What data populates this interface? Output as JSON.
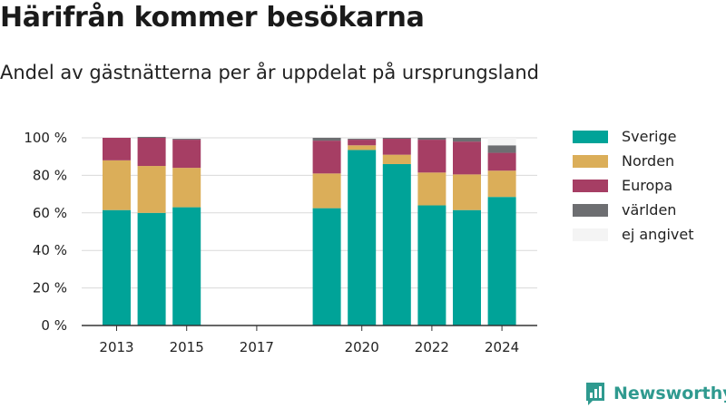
{
  "chart_data": {
    "type": "bar",
    "stacked": true,
    "title": "Härifrån kommer besökarna",
    "subtitle": "Andel av gästnätterna per år uppdelat på ursprungsland",
    "xlabel": "",
    "ylabel": "",
    "ylim": [
      0,
      100
    ],
    "yticks": [
      "0 %",
      "20 %",
      "40 %",
      "60 %",
      "80 %",
      "100 %"
    ],
    "xticks": [
      "2013",
      "2015",
      "2017",
      "2020",
      "2022",
      "2024"
    ],
    "categories": [
      "2013",
      "2014",
      "2015",
      "2016",
      "2017",
      "2018",
      "2019",
      "2020",
      "2021",
      "2022",
      "2023",
      "2024"
    ],
    "series": [
      {
        "name": "Sverige",
        "color": "#00a398",
        "values": [
          61.5,
          60,
          63,
          null,
          null,
          null,
          62.5,
          93.5,
          86,
          64,
          61.5,
          68.5
        ]
      },
      {
        "name": "Norden",
        "color": "#dbae59",
        "values": [
          26.5,
          25,
          21,
          null,
          null,
          null,
          18.5,
          2.5,
          5,
          17.5,
          19,
          14
        ]
      },
      {
        "name": "Europa",
        "color": "#a63e64",
        "values": [
          12,
          15,
          15,
          null,
          null,
          null,
          17.5,
          3,
          8.5,
          17.5,
          17.5,
          9.5
        ]
      },
      {
        "name": "världen",
        "color": "#6d6e71",
        "values": [
          0,
          0.5,
          0.5,
          null,
          null,
          null,
          1.5,
          0.5,
          0.5,
          1,
          2,
          4
        ]
      },
      {
        "name": "ej angivet",
        "color": "#f4f4f4",
        "values": [
          0,
          0,
          0.5,
          null,
          null,
          null,
          0,
          0,
          0,
          0,
          0,
          4
        ]
      }
    ],
    "legend_position": "right",
    "grid": true
  },
  "brand": {
    "name": "Newsworthy"
  }
}
